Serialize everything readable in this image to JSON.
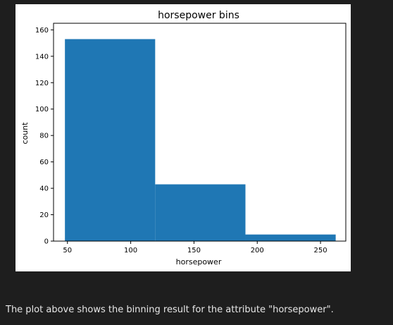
{
  "caption": "The plot above shows the binning result for the attribute \"horsepower\".",
  "chart_data": {
    "type": "bar",
    "title": "horsepower bins",
    "xlabel": "horsepower",
    "ylabel": "count",
    "bins": [
      {
        "start": 48,
        "end": 119.33,
        "count": 153
      },
      {
        "start": 119.33,
        "end": 190.67,
        "count": 43
      },
      {
        "start": 190.67,
        "end": 262,
        "count": 5
      }
    ],
    "xlim": [
      39,
      270
    ],
    "ylim": [
      0,
      165
    ],
    "xticks": [
      50,
      100,
      150,
      200,
      250
    ],
    "yticks": [
      0,
      20,
      40,
      60,
      80,
      100,
      120,
      140,
      160
    ],
    "bar_color": "#1f77b4",
    "grid": false
  }
}
